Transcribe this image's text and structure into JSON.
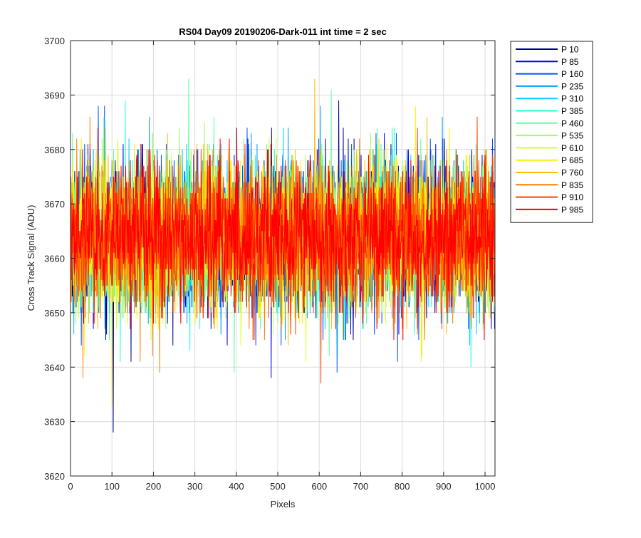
{
  "chart_data": {
    "type": "line",
    "title": "RS04 Day09 20190206-Dark-011 int time = 2 sec",
    "xlabel": "Pixels",
    "ylabel": "Cross Track Signal (ADU)",
    "xlim": [
      0,
      1024
    ],
    "ylim": [
      3620,
      3700
    ],
    "xticks": [
      0,
      100,
      200,
      300,
      400,
      500,
      600,
      700,
      800,
      900,
      1000
    ],
    "yticks": [
      3620,
      3630,
      3640,
      3650,
      3660,
      3670,
      3680,
      3690,
      3700
    ],
    "grid": true,
    "legend_position": "outside-top-right",
    "series_count_points": 1024,
    "series_mean": 3664,
    "series_spread": 8,
    "series": [
      {
        "name": "P 10",
        "color": "#00008F",
        "min": 3628,
        "max": 3689,
        "notable": [
          [
            103,
            3628
          ],
          [
            647,
            3689
          ]
        ]
      },
      {
        "name": "P 85",
        "color": "#0000EF",
        "min": 3638,
        "max": 3686,
        "notable": [
          [
            484,
            3638
          ]
        ]
      },
      {
        "name": "P 160",
        "color": "#0050FF",
        "min": 3639,
        "max": 3688,
        "notable": [
          [
            67,
            3688
          ]
        ]
      },
      {
        "name": "P 235",
        "color": "#009FFF",
        "min": 3639,
        "max": 3688
      },
      {
        "name": "P 310",
        "color": "#00CFFF",
        "min": 3639,
        "max": 3689
      },
      {
        "name": "P 385",
        "color": "#20FFDF",
        "min": 3639,
        "max": 3689
      },
      {
        "name": "P 460",
        "color": "#60FFA0",
        "min": 3638,
        "max": 3693,
        "notable": [
          [
            285,
            3693
          ]
        ]
      },
      {
        "name": "P 535",
        "color": "#9FFF60",
        "min": 3640,
        "max": 3688
      },
      {
        "name": "P 610",
        "color": "#DFFF20",
        "min": 3641,
        "max": 3690
      },
      {
        "name": "P 685",
        "color": "#FFEF00",
        "min": 3633,
        "max": 3690,
        "notable": [
          [
            100,
            3633
          ]
        ]
      },
      {
        "name": "P 760",
        "color": "#FFBF00",
        "min": 3641,
        "max": 3693,
        "notable": [
          [
            589,
            3693
          ]
        ]
      },
      {
        "name": "P 835",
        "color": "#FF7F00",
        "min": 3638,
        "max": 3690,
        "notable": [
          [
            30,
            3638
          ]
        ]
      },
      {
        "name": "P 910",
        "color": "#FF4000",
        "min": 3637,
        "max": 3687,
        "notable": [
          [
            604,
            3637
          ]
        ]
      },
      {
        "name": "P 985",
        "color": "#FF0000",
        "min": 3645,
        "max": 3686
      }
    ]
  }
}
